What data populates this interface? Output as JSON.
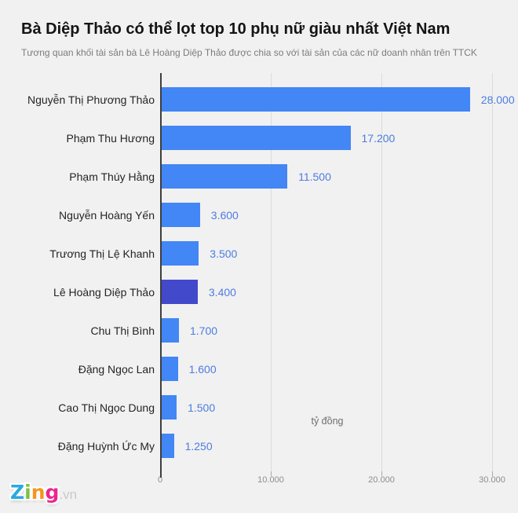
{
  "header": {
    "title": "Bà Diệp Thảo có thể lọt top 10 phụ nữ giàu nhất Việt Nam",
    "subtitle": "Tương quan khối tài sản bà Lê Hoàng Diệp Thảo được chia so với tài sản của các nữ doanh nhân trên TTCK"
  },
  "chart_data": {
    "type": "bar",
    "orientation": "horizontal",
    "categories": [
      "Nguyễn Thị Phương Thảo",
      "Phạm Thu Hương",
      "Phạm Thúy Hằng",
      "Nguyễn Hoàng Yến",
      "Trương Thị Lệ Khanh",
      "Lê Hoàng Diệp Thảo",
      "Chu Thị Bình",
      "Đặng Ngọc Lan",
      "Cao Thị Ngọc Dung",
      "Đặng Huỳnh Ức My"
    ],
    "values": [
      28000,
      17200,
      11500,
      3600,
      3500,
      3400,
      1700,
      1600,
      1500,
      1250
    ],
    "value_labels": [
      "28.000",
      "17.200",
      "11.500",
      "3.600",
      "3.500",
      "3.400",
      "1.700",
      "1.600",
      "1.500",
      "1.250"
    ],
    "highlight_index": 5,
    "highlight_category": "Lê Hoàng Diệp Thảo",
    "xlabel": "tỷ đồng",
    "xlim": [
      0,
      30000
    ],
    "x_ticks": [
      0,
      10000,
      20000,
      30000
    ],
    "x_tick_labels": [
      "0",
      "10.000",
      "20.000",
      "30.000"
    ],
    "grid": "vertical",
    "legend": "none",
    "colors": {
      "bar": "#4386f5",
      "bar_highlight": "#4349cb",
      "value_label": "#4d7ce0",
      "gridline": "#dbdbdb",
      "axis_line": "#3e3e3e"
    }
  },
  "footer": {
    "logo": {
      "letters": [
        {
          "char": "Z",
          "color": "#2aa9e0"
        },
        {
          "char": "i",
          "color": "#7dc242"
        },
        {
          "char": "n",
          "color": "#f7941e"
        },
        {
          "char": "g",
          "color": "#ec268f"
        }
      ],
      "suffix": ".vn"
    }
  }
}
